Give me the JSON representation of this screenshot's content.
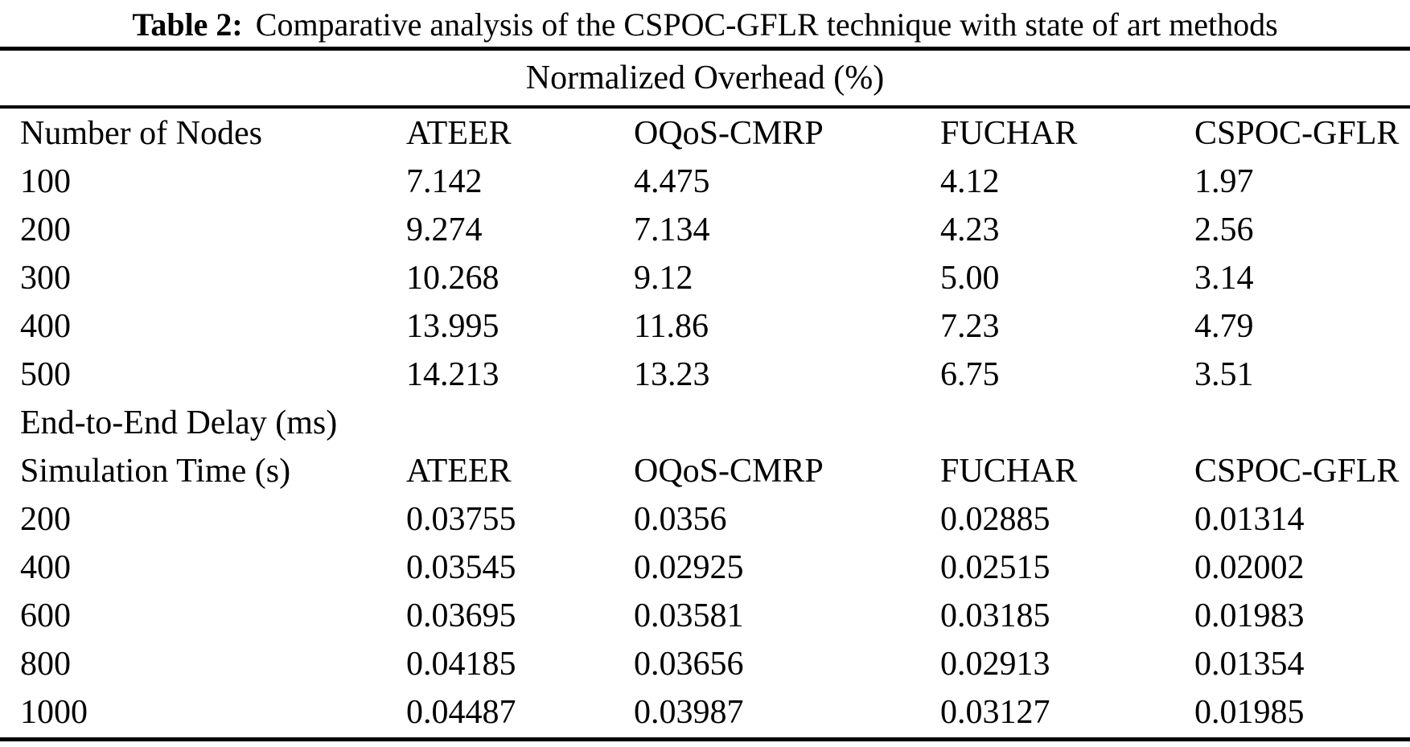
{
  "page": {
    "background_color": "#ffffff",
    "text_color": "#000000"
  },
  "caption": {
    "label": "Table 2:",
    "text": "Comparative analysis of the CSPOC-GFLR technique with state of art methods"
  },
  "sections": [
    {
      "title": "Normalized Overhead (%)",
      "header": [
        "Number of Nodes",
        "ATEER",
        "OQoS-CMRP",
        "FUCHAR",
        "CSPOC-GFLR"
      ],
      "rows": [
        [
          "100",
          "7.142",
          "4.475",
          "4.12",
          "1.97"
        ],
        [
          "200",
          "9.274",
          "7.134",
          "4.23",
          "2.56"
        ],
        [
          "300",
          "10.268",
          "9.12",
          "5.00",
          "3.14"
        ],
        [
          "400",
          "13.995",
          "11.86",
          "7.23",
          "4.79"
        ],
        [
          "500",
          "14.213",
          "13.23",
          "6.75",
          "3.51"
        ]
      ]
    },
    {
      "title": "End-to-End Delay (ms)",
      "header": [
        "Simulation Time (s)",
        "ATEER",
        "OQoS-CMRP",
        "FUCHAR",
        "CSPOC-GFLR"
      ],
      "rows": [
        [
          "200",
          "0.03755",
          "0.0356",
          "0.02885",
          "0.01314"
        ],
        [
          "400",
          "0.03545",
          "0.02925",
          "0.02515",
          "0.02002"
        ],
        [
          "600",
          "0.03695",
          "0.03581",
          "0.03185",
          "0.01983"
        ],
        [
          "800",
          "0.04185",
          "0.03656",
          "0.02913",
          "0.01354"
        ],
        [
          "1000",
          "0.04487",
          "0.03987",
          "0.03127",
          "0.01985"
        ]
      ]
    }
  ]
}
